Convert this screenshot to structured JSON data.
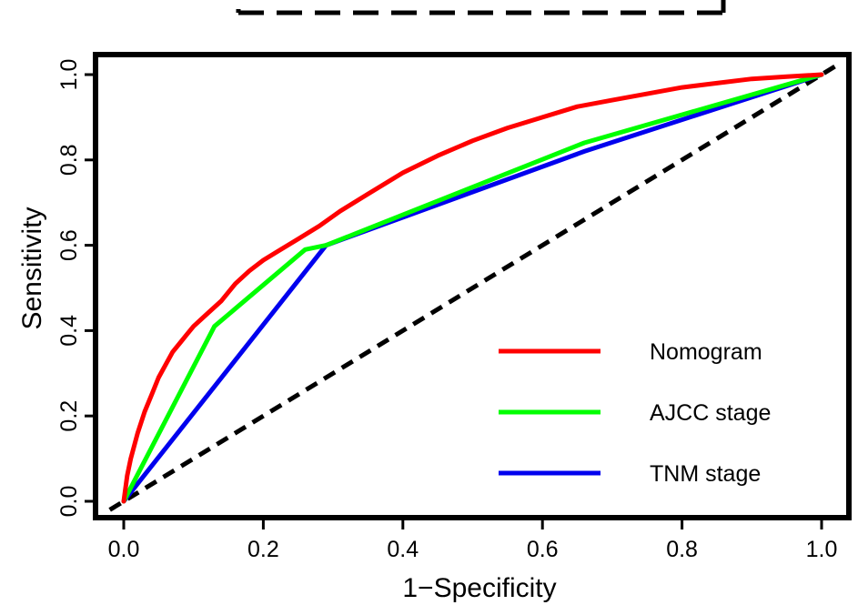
{
  "chart_data": {
    "type": "line",
    "xlabel": "1−Specificity",
    "ylabel": "Sensitivity",
    "xlim": [
      0.0,
      1.0
    ],
    "ylim": [
      0.0,
      1.0
    ],
    "x_ticks": [
      "0.0",
      "0.2",
      "0.4",
      "0.6",
      "0.8",
      "1.0"
    ],
    "y_ticks": [
      "0.0",
      "0.2",
      "0.4",
      "0.6",
      "0.8",
      "1.0"
    ],
    "grid": false,
    "legend_position": "bottom-right",
    "series": [
      {
        "name": "Nomogram",
        "color": "#ff0000",
        "x": [
          0.0,
          0.005,
          0.01,
          0.02,
          0.03,
          0.04,
          0.05,
          0.06,
          0.07,
          0.08,
          0.09,
          0.1,
          0.12,
          0.14,
          0.16,
          0.18,
          0.2,
          0.22,
          0.25,
          0.28,
          0.31,
          0.35,
          0.4,
          0.45,
          0.5,
          0.55,
          0.6,
          0.65,
          0.7,
          0.75,
          0.8,
          0.85,
          0.9,
          0.95,
          1.0
        ],
        "y": [
          0.0,
          0.06,
          0.1,
          0.16,
          0.21,
          0.25,
          0.29,
          0.32,
          0.35,
          0.37,
          0.39,
          0.41,
          0.44,
          0.47,
          0.51,
          0.54,
          0.565,
          0.585,
          0.615,
          0.645,
          0.68,
          0.72,
          0.77,
          0.81,
          0.845,
          0.875,
          0.9,
          0.925,
          0.94,
          0.955,
          0.97,
          0.98,
          0.99,
          0.995,
          1.0
        ]
      },
      {
        "name": "AJCC stage",
        "color": "#00ff00",
        "x": [
          0.0,
          0.13,
          0.26,
          0.29,
          0.66,
          1.0
        ],
        "y": [
          0.0,
          0.41,
          0.59,
          0.6,
          0.84,
          1.0
        ]
      },
      {
        "name": "TNM stage",
        "color": "#0000ee",
        "x": [
          0.0,
          0.29,
          0.66,
          1.0
        ],
        "y": [
          0.0,
          0.6,
          0.82,
          1.0
        ]
      }
    ],
    "reference_line": {
      "x": [
        -0.02,
        1.02
      ],
      "y": [
        -0.02,
        1.02
      ],
      "color": "#000000",
      "style": "dashed"
    }
  }
}
